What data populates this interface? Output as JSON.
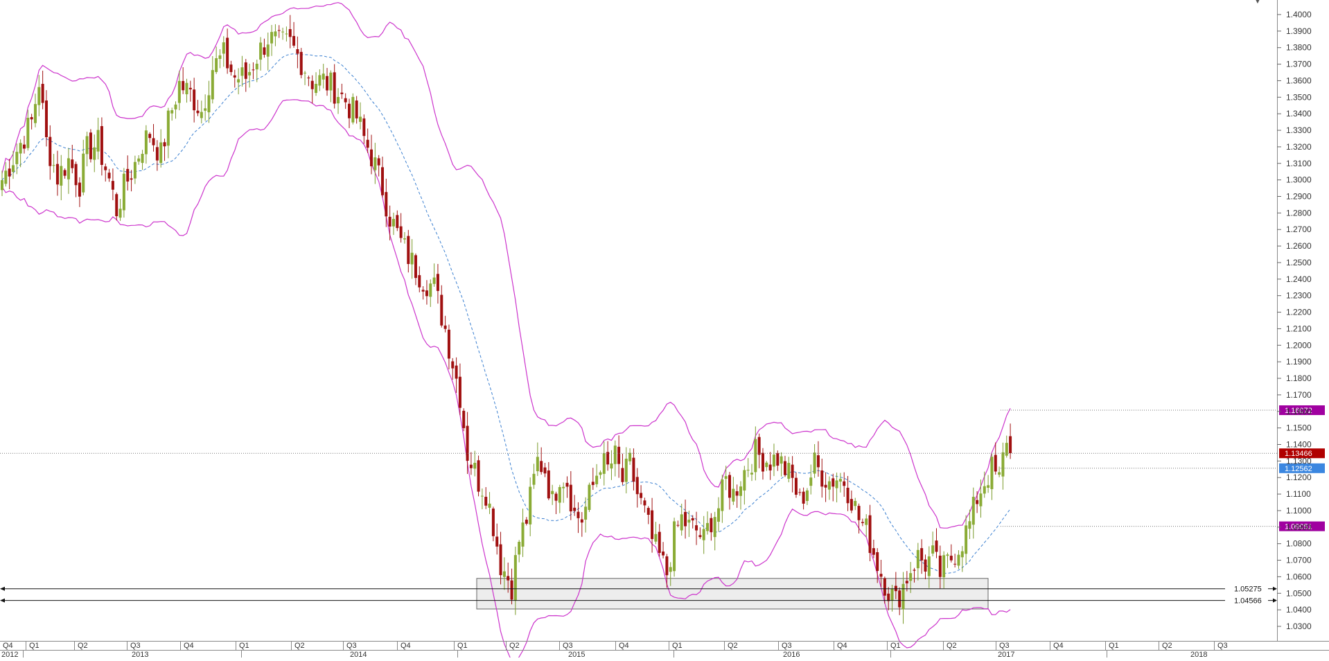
{
  "chart_data": {
    "type": "candlestick",
    "y_axis": {
      "range": [
        1.023,
        1.4075
      ],
      "ticks": [
        1.03,
        1.04,
        1.05,
        1.06,
        1.07,
        1.08,
        1.09,
        1.1,
        1.11,
        1.12,
        1.13,
        1.14,
        1.15,
        1.16,
        1.17,
        1.18,
        1.19,
        1.2,
        1.21,
        1.22,
        1.23,
        1.24,
        1.25,
        1.26,
        1.27,
        1.28,
        1.29,
        1.3,
        1.31,
        1.32,
        1.33,
        1.34,
        1.35,
        1.36,
        1.37,
        1.38,
        1.39,
        1.4
      ],
      "tick_labels": [
        "1.0300",
        "1.0400",
        "1.0500",
        "1.0600",
        "1.0700",
        "1.0800",
        "1.0900",
        "1.1000",
        "1.1100",
        "1.1200",
        "1.1300",
        "1.1400",
        "1.1500",
        "1.1600",
        "1.1700",
        "1.1800",
        "1.1900",
        "1.2000",
        "1.2100",
        "1.2200",
        "1.2300",
        "1.2400",
        "1.2500",
        "1.2600",
        "1.2700",
        "1.2800",
        "1.2900",
        "1.3000",
        "1.3100",
        "1.3200",
        "1.3300",
        "1.3400",
        "1.3500",
        "1.3600",
        "1.3700",
        "1.3800",
        "1.3900",
        "1.4000"
      ]
    },
    "x_axis": {
      "quarter_labels": [
        "Q4",
        "Q1",
        "Q2",
        "Q3",
        "Q4",
        "Q1",
        "Q2",
        "Q3",
        "Q4",
        "Q1",
        "Q2",
        "Q3",
        "Q4",
        "Q1",
        "Q2",
        "Q3",
        "Q4",
        "Q1",
        "Q2",
        "Q3",
        "Q4",
        "Q1",
        "Q2",
        "Q3"
      ],
      "year_labels": [
        "2012",
        "2013",
        "2014",
        "2015",
        "2016",
        "2017",
        "2018"
      ]
    },
    "price_markers": [
      {
        "value": 1.16072,
        "label": "1.16072",
        "color": "#a000a0"
      },
      {
        "value": 1.13466,
        "label": "1.13466",
        "color": "#b00000"
      },
      {
        "value": 1.12562,
        "label": "1.12562",
        "color": "#3a86e0"
      },
      {
        "value": 1.09051,
        "label": "1.09051",
        "color": "#a000a0"
      }
    ],
    "support_lines": [
      {
        "value": 1.05275,
        "label": "1.05275"
      },
      {
        "value": 1.04566,
        "label": "1.04566"
      }
    ],
    "support_zone": {
      "from": 1.0405,
      "to": 1.059
    },
    "indicators": {
      "bollinger_bands": {
        "color": "#cc33cc"
      },
      "middle_line": {
        "color": "#3a7fd0",
        "style": "dashed"
      }
    },
    "colors": {
      "up": "#7a9a2a",
      "down": "#a01010",
      "up_body": "#8aab35",
      "grid": "#dddddd"
    },
    "close_path": [
      [
        0,
        1.3
      ],
      [
        4,
        1.318
      ],
      [
        8,
        1.335
      ],
      [
        10,
        1.36
      ],
      [
        12,
        1.323
      ],
      [
        15,
        1.302
      ],
      [
        18,
        1.312
      ],
      [
        21,
        1.298
      ],
      [
        23,
        1.318
      ],
      [
        26,
        1.322
      ],
      [
        29,
        1.3
      ],
      [
        31,
        1.282
      ],
      [
        33,
        1.295
      ],
      [
        36,
        1.31
      ],
      [
        38,
        1.322
      ],
      [
        40,
        1.328
      ],
      [
        43,
        1.315
      ],
      [
        45,
        1.335
      ],
      [
        48,
        1.358
      ],
      [
        51,
        1.352
      ],
      [
        54,
        1.342
      ],
      [
        57,
        1.368
      ],
      [
        60,
        1.375
      ],
      [
        63,
        1.362
      ],
      [
        66,
        1.362
      ],
      [
        69,
        1.375
      ],
      [
        72,
        1.386
      ],
      [
        75,
        1.382
      ],
      [
        78,
        1.382
      ],
      [
        81,
        1.372
      ],
      [
        84,
        1.36
      ],
      [
        87,
        1.36
      ],
      [
        90,
        1.355
      ],
      [
        93,
        1.348
      ],
      [
        96,
        1.338
      ],
      [
        98,
        1.325
      ],
      [
        100,
        1.315
      ],
      [
        103,
        1.295
      ],
      [
        105,
        1.278
      ],
      [
        108,
        1.262
      ],
      [
        111,
        1.25
      ],
      [
        114,
        1.24
      ],
      [
        117,
        1.235
      ],
      [
        120,
        1.21
      ],
      [
        122,
        1.19
      ],
      [
        124,
        1.17
      ],
      [
        126,
        1.135
      ],
      [
        129,
        1.118
      ],
      [
        131,
        1.112
      ],
      [
        133,
        1.092
      ],
      [
        135,
        1.068
      ],
      [
        138,
        1.055
      ],
      [
        140,
        1.082
      ],
      [
        142,
        1.095
      ],
      [
        145,
        1.13
      ],
      [
        147,
        1.125
      ],
      [
        149,
        1.105
      ],
      [
        151,
        1.122
      ],
      [
        153,
        1.118
      ],
      [
        155,
        1.098
      ],
      [
        157,
        1.095
      ],
      [
        160,
        1.115
      ],
      [
        162,
        1.13
      ],
      [
        164,
        1.125
      ],
      [
        166,
        1.132
      ],
      [
        168,
        1.118
      ],
      [
        170,
        1.128
      ],
      [
        172,
        1.11
      ],
      [
        174,
        1.098
      ],
      [
        176,
        1.082
      ],
      [
        178,
        1.072
      ],
      [
        180,
        1.062
      ],
      [
        182,
        1.085
      ],
      [
        184,
        1.095
      ],
      [
        186,
        1.09
      ],
      [
        188,
        1.088
      ],
      [
        190,
        1.082
      ],
      [
        192,
        1.095
      ],
      [
        194,
        1.102
      ],
      [
        196,
        1.118
      ],
      [
        198,
        1.11
      ],
      [
        200,
        1.12
      ],
      [
        202,
        1.128
      ],
      [
        204,
        1.135
      ],
      [
        206,
        1.132
      ],
      [
        208,
        1.13
      ],
      [
        210,
        1.132
      ],
      [
        212,
        1.125
      ],
      [
        214,
        1.118
      ],
      [
        216,
        1.105
      ],
      [
        218,
        1.115
      ],
      [
        220,
        1.128
      ],
      [
        222,
        1.122
      ],
      [
        224,
        1.118
      ],
      [
        226,
        1.12
      ],
      [
        228,
        1.118
      ],
      [
        230,
        1.108
      ],
      [
        232,
        1.095
      ],
      [
        234,
        1.088
      ],
      [
        236,
        1.075
      ],
      [
        238,
        1.062
      ],
      [
        240,
        1.052
      ],
      [
        242,
        1.045
      ],
      [
        244,
        1.055
      ],
      [
        246,
        1.065
      ],
      [
        248,
        1.072
      ],
      [
        250,
        1.068
      ],
      [
        252,
        1.072
      ],
      [
        254,
        1.062
      ],
      [
        256,
        1.068
      ],
      [
        258,
        1.075
      ],
      [
        260,
        1.082
      ],
      [
        262,
        1.092
      ],
      [
        264,
        1.108
      ],
      [
        266,
        1.118
      ],
      [
        268,
        1.125
      ],
      [
        270,
        1.118
      ],
      [
        272,
        1.145
      ],
      [
        273,
        1.135
      ]
    ]
  }
}
